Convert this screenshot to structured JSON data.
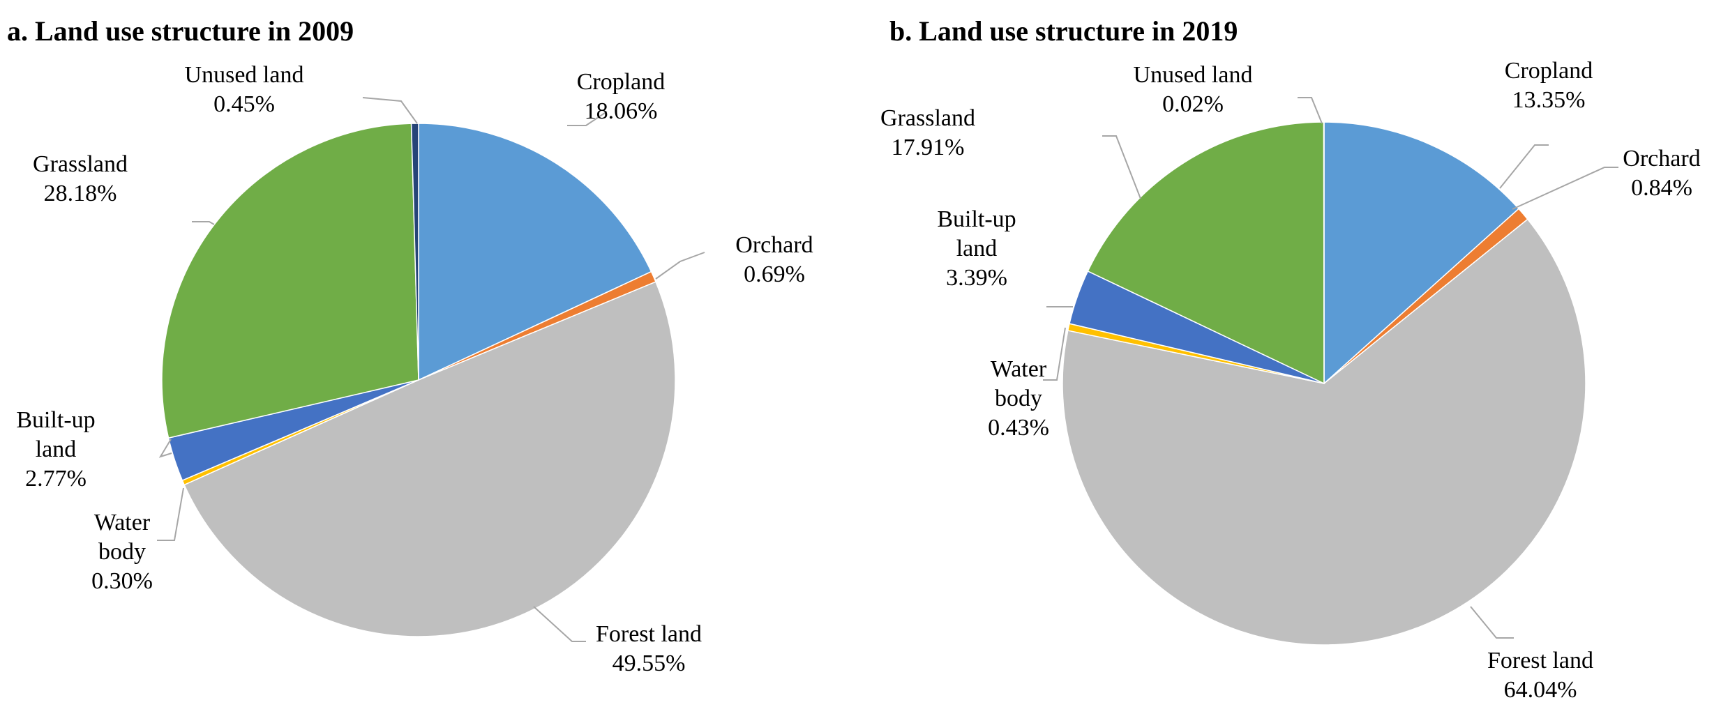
{
  "chart_data": [
    {
      "type": "pie",
      "title": "a. Land use structure in 2009",
      "slices": [
        {
          "name": "Cropland",
          "value": 18.06,
          "value_label": "18.06%",
          "color": "#5b9bd5"
        },
        {
          "name": "Orchard",
          "value": 0.69,
          "value_label": "0.69%",
          "color": "#ed7d31"
        },
        {
          "name": "Forest land",
          "value": 49.55,
          "value_label": "49.55%",
          "color": "#bfbfbf"
        },
        {
          "name": "Water body",
          "value": 0.3,
          "value_label": "0.30%",
          "color": "#ffc000"
        },
        {
          "name": "Built-up land",
          "value": 2.77,
          "value_label": "2.77%",
          "color": "#4472c4"
        },
        {
          "name": "Grassland",
          "value": 28.18,
          "value_label": "28.18%",
          "color": "#70ad47"
        },
        {
          "name": "Unused land",
          "value": 0.45,
          "value_label": "0.45%",
          "color": "#264478"
        }
      ]
    },
    {
      "type": "pie",
      "title": "b. Land use structure in 2019",
      "slices": [
        {
          "name": "Cropland",
          "value": 13.35,
          "value_label": "13.35%",
          "color": "#5b9bd5"
        },
        {
          "name": "Orchard",
          "value": 0.84,
          "value_label": "0.84%",
          "color": "#ed7d31"
        },
        {
          "name": "Forest land",
          "value": 64.04,
          "value_label": "64.04%",
          "color": "#bfbfbf"
        },
        {
          "name": "Water body",
          "value": 0.43,
          "value_label": "0.43%",
          "color": "#ffc000"
        },
        {
          "name": "Built-up land",
          "value": 3.39,
          "value_label": "3.39%",
          "color": "#4472c4"
        },
        {
          "name": "Grassland",
          "value": 17.91,
          "value_label": "17.91%",
          "color": "#70ad47"
        },
        {
          "name": "Unused land",
          "value": 0.02,
          "value_label": "0.02%",
          "color": "#264478"
        }
      ]
    }
  ]
}
